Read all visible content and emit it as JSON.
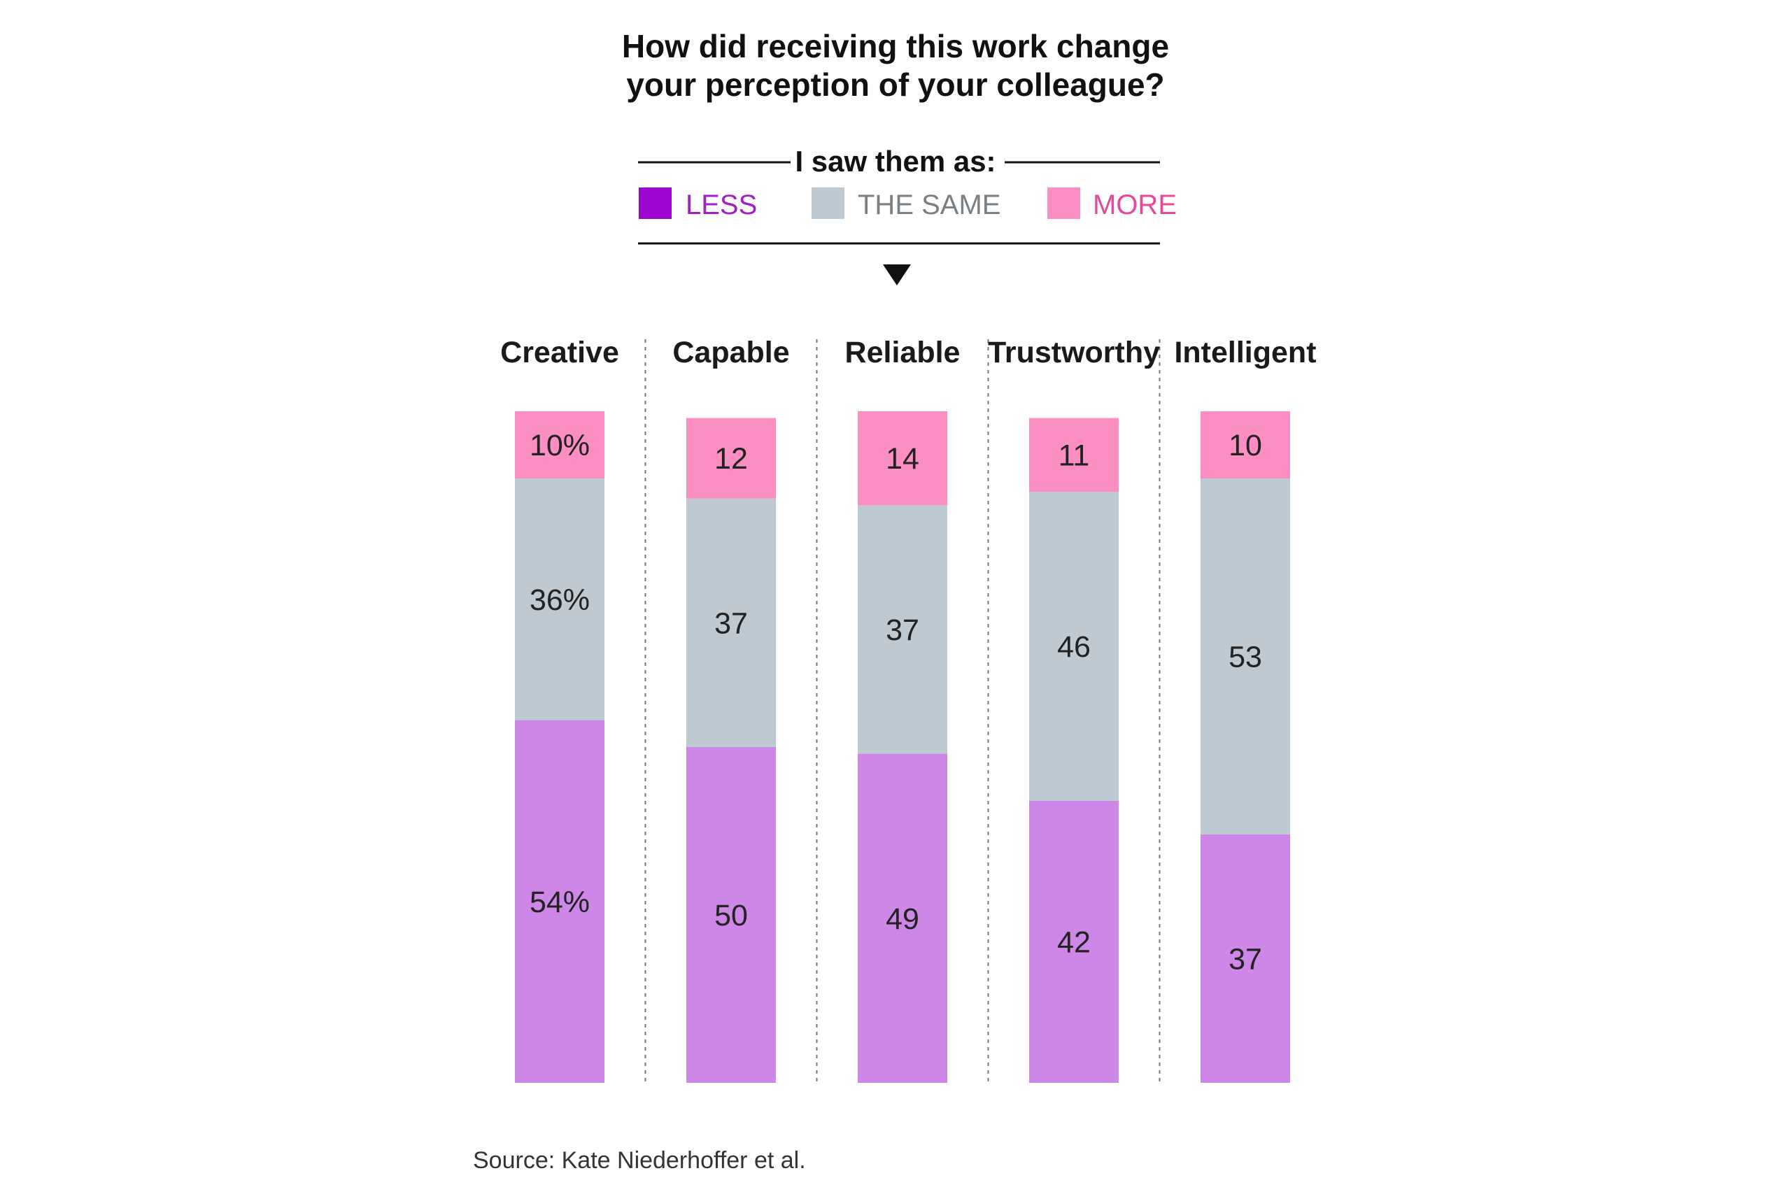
{
  "chart_data": {
    "type": "bar",
    "stacked": true,
    "orientation": "vertical",
    "title_lines": [
      "How did receiving this work change",
      "your perception of your colleague?"
    ],
    "legend_title": "I saw them as:",
    "categories": [
      "Creative",
      "Capable",
      "Reliable",
      "Trustworthy",
      "Intelligent"
    ],
    "series": [
      {
        "name": "LESS",
        "color": "#cd87e6",
        "legend_swatch": "#9b06d1",
        "legend_text_color": "#a020c8",
        "values": [
          54,
          50,
          49,
          42,
          37
        ],
        "labels": [
          "54%",
          "50",
          "49",
          "42",
          "37"
        ]
      },
      {
        "name": "THE SAME",
        "color": "#bec9d1",
        "legend_swatch": "#bec9d1",
        "legend_text_color": "#7a7f84",
        "values": [
          36,
          37,
          37,
          46,
          53
        ],
        "labels": [
          "36%",
          "37",
          "37",
          "46",
          "53"
        ]
      },
      {
        "name": "MORE",
        "color": "#fb8ec2",
        "legend_swatch": "#fb8ec2",
        "legend_text_color": "#e8489a",
        "values": [
          10,
          12,
          14,
          11,
          10
        ],
        "labels": [
          "10%",
          "12",
          "14",
          "11",
          "10"
        ]
      }
    ],
    "ylim": [
      0,
      100
    ],
    "xlabel": "",
    "ylabel": "",
    "grid": false,
    "legend_position": "top",
    "source": "Source: Kate Niederhoffer et al."
  }
}
